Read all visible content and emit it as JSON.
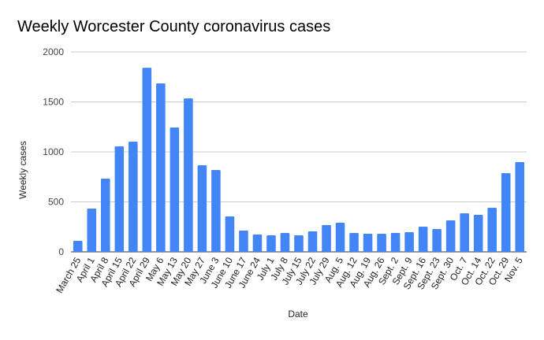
{
  "chart_data": {
    "type": "bar",
    "title": "Weekly Worcester County coronavirus cases",
    "xlabel": "Date",
    "ylabel": "Weekly cases",
    "ylim": [
      0,
      2000
    ],
    "yticks": [
      0,
      500,
      1000,
      1500,
      2000
    ],
    "grid": true,
    "bar_color": "#4285f4",
    "categories": [
      "March 25",
      "April 1",
      "April 8",
      "April 15",
      "April 22",
      "April 29",
      "May 6",
      "May 13",
      "May 20",
      "May 27",
      "June 3",
      "June 10",
      "June 17",
      "June 24",
      "July 1",
      "July 8",
      "July 15",
      "July 22",
      "July 29",
      "Aug. 5",
      "Aug. 12",
      "Aug. 19",
      "Aug. 26",
      "Sept. 2",
      "Sept. 9",
      "Sept. 16",
      "Sept. 23",
      "Sept. 30",
      "Oct. 7",
      "Oct. 14",
      "Oct. 22",
      "Oct. 29",
      "Nov. 5"
    ],
    "values": [
      110,
      433,
      732,
      1055,
      1102,
      1842,
      1685,
      1244,
      1535,
      866,
      819,
      354,
      213,
      173,
      165,
      189,
      165,
      205,
      268,
      291,
      189,
      181,
      181,
      189,
      197,
      252,
      228,
      315,
      386,
      370,
      441,
      787,
      898
    ]
  }
}
